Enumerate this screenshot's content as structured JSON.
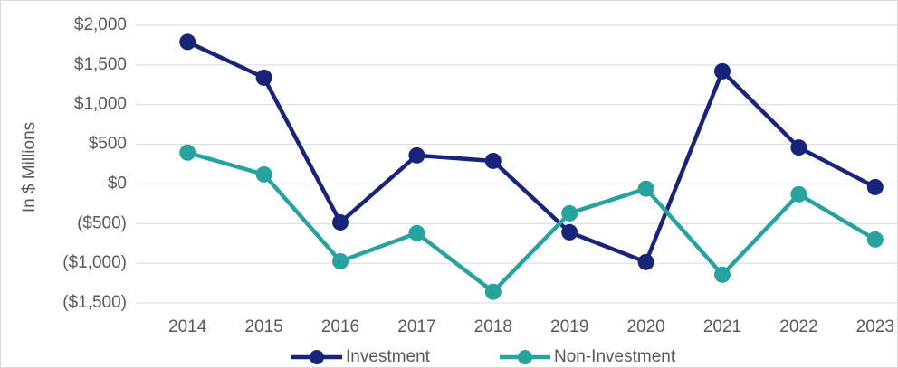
{
  "chart_data": {
    "type": "line",
    "y_label": "In $ Millions",
    "categories": [
      "2014",
      "2015",
      "2016",
      "2017",
      "2018",
      "2019",
      "2020",
      "2021",
      "2022",
      "2023"
    ],
    "series": [
      {
        "name": "Investment",
        "color": "#17247a",
        "values": [
          1790,
          1340,
          -485,
          360,
          290,
          -610,
          -985,
          1420,
          460,
          -40
        ]
      },
      {
        "name": "Non-Investment",
        "color": "#26a29f",
        "values": [
          395,
          120,
          -975,
          -620,
          -1360,
          -370,
          -60,
          -1145,
          -130,
          -700
        ]
      }
    ],
    "ylim": [
      -1500,
      2000
    ],
    "yticks": [
      {
        "value": -1500,
        "label": "($1,500)"
      },
      {
        "value": -1000,
        "label": "($1,000)"
      },
      {
        "value": -500,
        "label": "($500)"
      },
      {
        "value": 0,
        "label": "$0"
      },
      {
        "value": 500,
        "label": "$500"
      },
      {
        "value": 1000,
        "label": "$1,000"
      },
      {
        "value": 1500,
        "label": "$1,500"
      },
      {
        "value": 2000,
        "label": "$2,000"
      }
    ],
    "grid": true,
    "legend": "bottom"
  }
}
